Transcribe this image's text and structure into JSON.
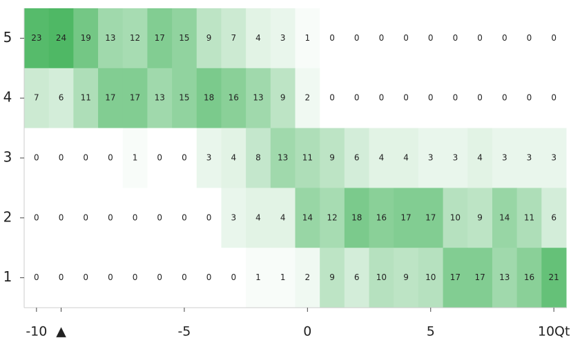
{
  "chart_data": {
    "type": "heatmap",
    "categories": [
      "-10",
      "▲",
      null,
      null,
      null,
      null,
      "-5",
      null,
      null,
      null,
      null,
      "0",
      null,
      null,
      null,
      null,
      "5",
      null,
      null,
      null,
      null,
      "10Qt"
    ],
    "y": [
      5,
      4,
      3,
      2,
      1
    ],
    "values": [
      [
        23,
        24,
        19,
        13,
        12,
        17,
        15,
        9,
        7,
        4,
        3,
        1,
        0,
        0,
        0,
        0,
        0,
        0,
        0,
        0,
        0,
        0
      ],
      [
        7,
        6,
        11,
        17,
        17,
        13,
        15,
        18,
        16,
        13,
        9,
        2,
        0,
        0,
        0,
        0,
        0,
        0,
        0,
        0,
        0,
        0
      ],
      [
        0,
        0,
        0,
        0,
        1,
        0,
        0,
        3,
        4,
        8,
        13,
        11,
        9,
        6,
        4,
        4,
        3,
        3,
        4,
        3,
        3,
        3
      ],
      [
        0,
        0,
        0,
        0,
        0,
        0,
        0,
        0,
        3,
        4,
        4,
        14,
        12,
        18,
        16,
        17,
        17,
        10,
        9,
        14,
        11,
        6
      ],
      [
        0,
        0,
        0,
        0,
        0,
        0,
        0,
        0,
        0,
        1,
        1,
        2,
        9,
        6,
        10,
        9,
        10,
        17,
        17,
        13,
        16,
        21
      ]
    ],
    "color": "#4fb865"
  }
}
